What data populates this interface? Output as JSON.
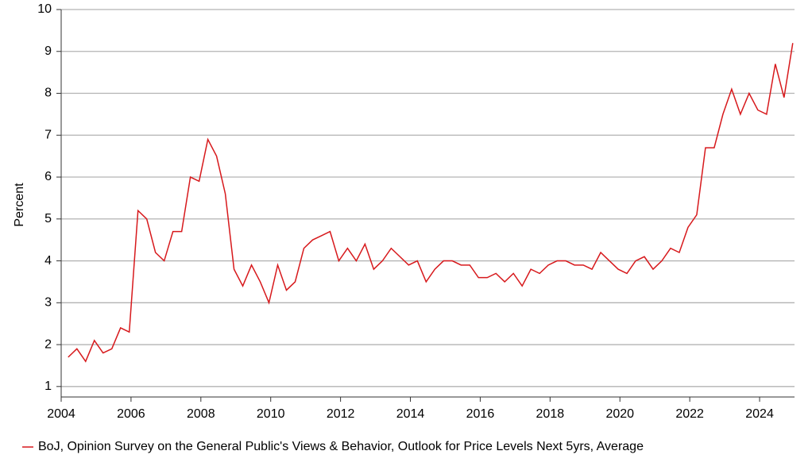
{
  "chart_data": {
    "type": "line",
    "y_label": "Percent",
    "x": [
      2004.2,
      2004.45,
      2004.7,
      2004.95,
      2005.2,
      2005.45,
      2005.7,
      2005.95,
      2006.2,
      2006.45,
      2006.7,
      2006.95,
      2007.2,
      2007.45,
      2007.7,
      2007.95,
      2008.2,
      2008.45,
      2008.7,
      2008.95,
      2009.2,
      2009.45,
      2009.7,
      2009.95,
      2010.2,
      2010.45,
      2010.7,
      2010.95,
      2011.2,
      2011.45,
      2011.7,
      2011.95,
      2012.2,
      2012.45,
      2012.7,
      2012.95,
      2013.2,
      2013.45,
      2013.7,
      2013.95,
      2014.2,
      2014.45,
      2014.7,
      2014.95,
      2015.2,
      2015.45,
      2015.7,
      2015.95,
      2016.2,
      2016.45,
      2016.7,
      2016.95,
      2017.2,
      2017.45,
      2017.7,
      2017.95,
      2018.2,
      2018.45,
      2018.7,
      2018.95,
      2019.2,
      2019.45,
      2019.7,
      2019.95,
      2020.2,
      2020.45,
      2020.7,
      2020.95,
      2021.2,
      2021.45,
      2021.7,
      2021.95,
      2022.2,
      2022.45,
      2022.7,
      2022.95,
      2023.2,
      2023.45,
      2023.7,
      2023.95,
      2024.2,
      2024.45,
      2024.7,
      2024.95
    ],
    "series": [
      {
        "name": "BoJ, Opinion Survey on the General Public's Views & Behavior, Outlook for Price Levels Next 5yrs, Average",
        "color": "#d7191c",
        "values": [
          1.7,
          1.9,
          1.6,
          2.1,
          1.8,
          1.9,
          2.4,
          2.3,
          5.2,
          5.0,
          4.2,
          4.0,
          4.7,
          4.7,
          6.0,
          5.9,
          6.9,
          6.5,
          5.6,
          3.8,
          3.4,
          3.9,
          3.5,
          3.0,
          3.9,
          3.3,
          3.5,
          4.3,
          4.5,
          4.6,
          4.7,
          4.0,
          4.3,
          4.0,
          4.4,
          3.8,
          4.0,
          4.3,
          4.1,
          3.9,
          4.0,
          3.5,
          3.8,
          4.0,
          4.0,
          3.9,
          3.9,
          3.6,
          3.6,
          3.7,
          3.5,
          3.7,
          3.4,
          3.8,
          3.7,
          3.9,
          4.0,
          4.0,
          3.9,
          3.9,
          3.8,
          4.2,
          4.0,
          3.8,
          3.7,
          4.0,
          4.1,
          3.8,
          4.0,
          4.3,
          4.2,
          4.8,
          5.1,
          6.7,
          6.7,
          7.5,
          8.1,
          7.5,
          8.0,
          7.6,
          7.5,
          8.7,
          7.9,
          9.2
        ]
      }
    ],
    "xlim": [
      2004,
      2025
    ],
    "xticks": [
      2004,
      2006,
      2008,
      2010,
      2012,
      2014,
      2016,
      2018,
      2020,
      2022,
      2024
    ],
    "ylim": [
      0.75,
      10
    ],
    "yticks": [
      1,
      2,
      3,
      4,
      5,
      6,
      7,
      8,
      9,
      10
    ],
    "grid": true
  }
}
